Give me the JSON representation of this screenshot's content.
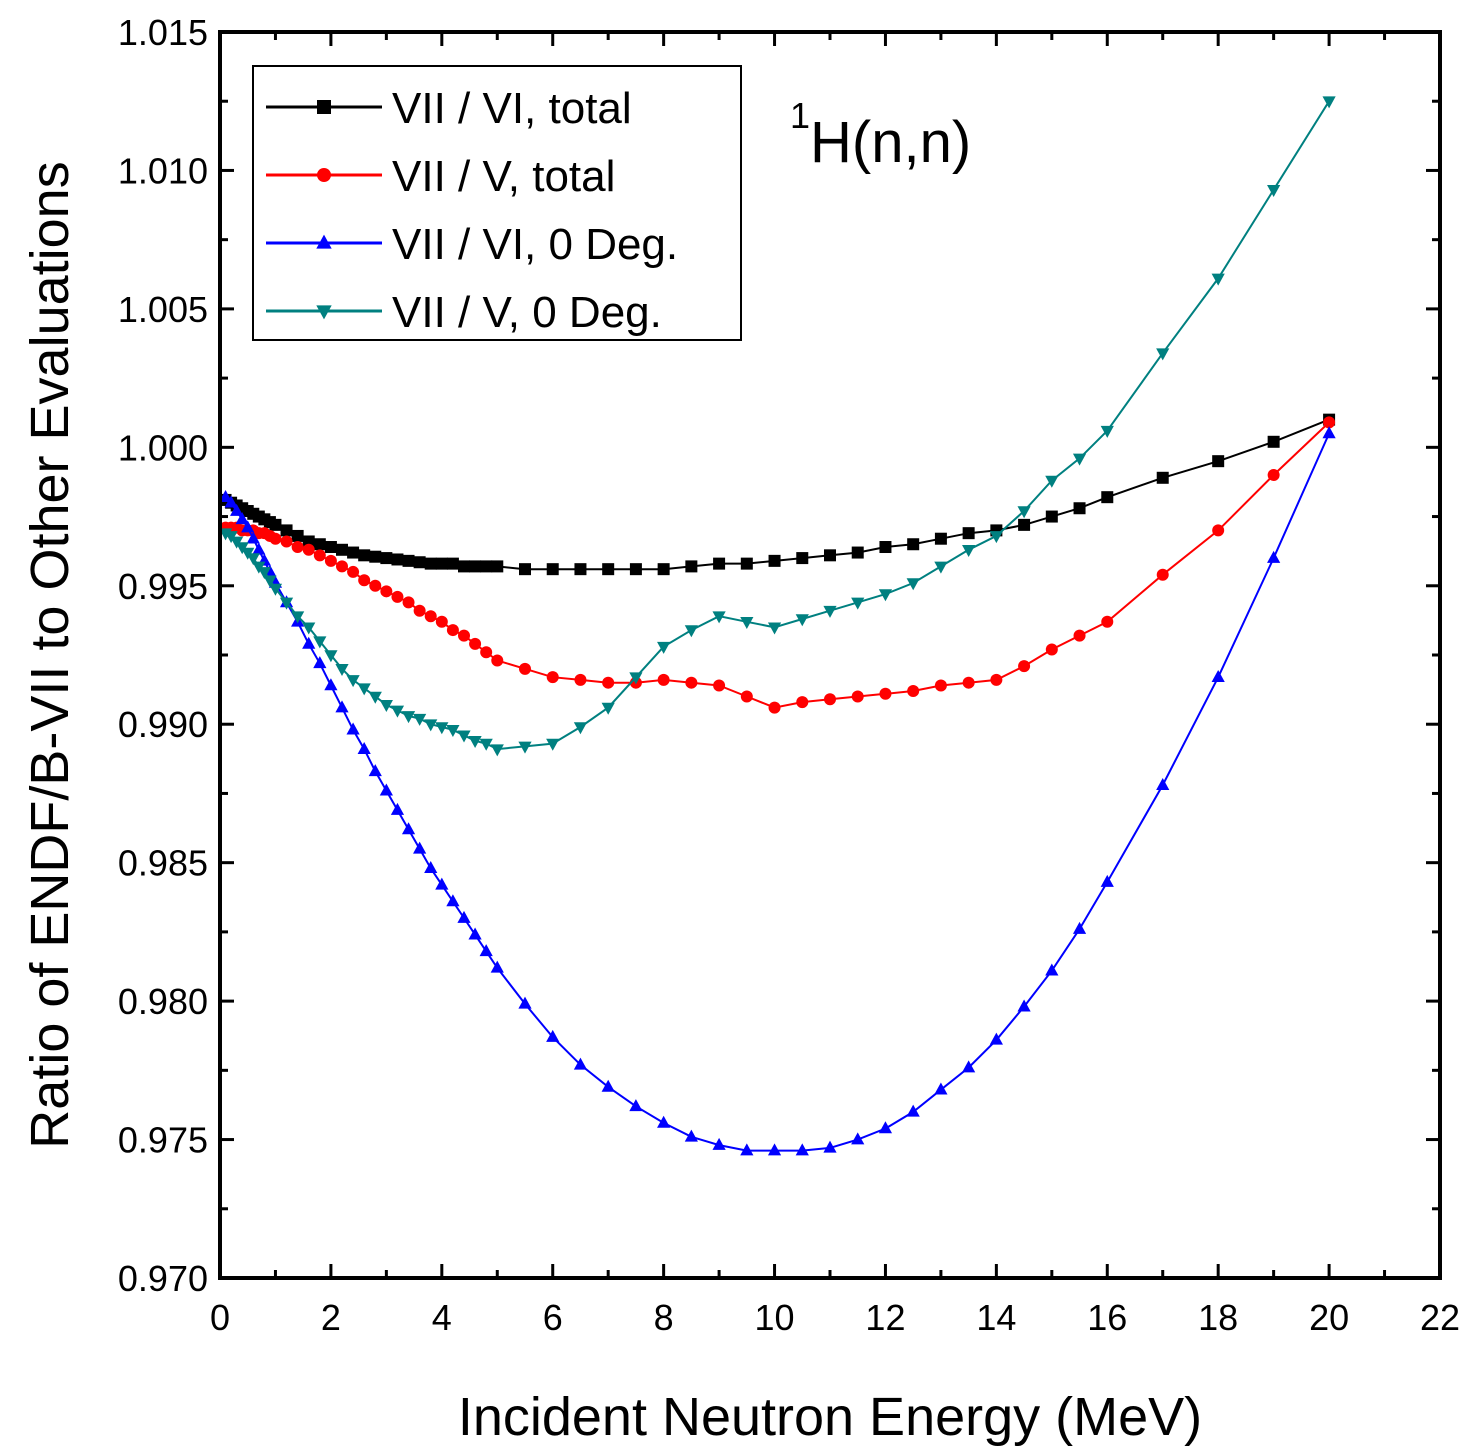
{
  "chart_data": {
    "type": "line",
    "title": "",
    "xlabel": "Incident Neutron Energy (MeV)",
    "ylabel": "Ratio of ENDF/B-VII to Other Evaluations",
    "xlim": [
      0,
      22
    ],
    "ylim": [
      0.97,
      1.015
    ],
    "x_ticks": [
      "0",
      "2",
      "4",
      "6",
      "8",
      "10",
      "12",
      "14",
      "16",
      "18",
      "20",
      "22"
    ],
    "y_ticks": [
      "0.970",
      "0.975",
      "0.980",
      "0.985",
      "0.990",
      "0.995",
      "1.000",
      "1.005",
      "1.010",
      "1.015"
    ],
    "grid": false,
    "legend_position": "top-left",
    "annotation": {
      "superscript": "1",
      "text": "H(n,n)"
    },
    "series": [
      {
        "name": "VII / VI, total",
        "color": "#000000",
        "marker": "square",
        "x": [
          0.1,
          0.2,
          0.3,
          0.4,
          0.5,
          0.6,
          0.7,
          0.8,
          0.9,
          1.0,
          1.2,
          1.4,
          1.6,
          1.8,
          2.0,
          2.2,
          2.4,
          2.6,
          2.8,
          3.0,
          3.2,
          3.4,
          3.6,
          3.8,
          4.0,
          4.2,
          4.4,
          4.6,
          4.8,
          5.0,
          5.5,
          6.0,
          6.5,
          7.0,
          7.5,
          8.0,
          8.5,
          9.0,
          9.5,
          10.0,
          10.5,
          11.0,
          11.5,
          12.0,
          12.5,
          13.0,
          13.5,
          14.0,
          14.5,
          15.0,
          15.5,
          16.0,
          17.0,
          18.0,
          19.0,
          20.0
        ],
        "y": [
          0.9981,
          0.998,
          0.9979,
          0.9978,
          0.9977,
          0.9976,
          0.9975,
          0.9974,
          0.9973,
          0.9972,
          0.997,
          0.9968,
          0.9966,
          0.9965,
          0.9964,
          0.9963,
          0.9962,
          0.9961,
          0.99605,
          0.996,
          0.99595,
          0.9959,
          0.99585,
          0.9958,
          0.9958,
          0.9958,
          0.9957,
          0.9957,
          0.9957,
          0.9957,
          0.9956,
          0.9956,
          0.9956,
          0.9956,
          0.9956,
          0.9956,
          0.9957,
          0.9958,
          0.9958,
          0.9959,
          0.996,
          0.9961,
          0.9962,
          0.9964,
          0.9965,
          0.9967,
          0.9969,
          0.997,
          0.9972,
          0.9975,
          0.9978,
          0.9982,
          0.9989,
          0.9995,
          1.0002,
          1.001
        ]
      },
      {
        "name": "VII / V, total",
        "color": "#ff0000",
        "marker": "circle",
        "x": [
          0.1,
          0.2,
          0.3,
          0.4,
          0.5,
          0.6,
          0.7,
          0.8,
          0.9,
          1.0,
          1.2,
          1.4,
          1.6,
          1.8,
          2.0,
          2.2,
          2.4,
          2.6,
          2.8,
          3.0,
          3.2,
          3.4,
          3.6,
          3.8,
          4.0,
          4.2,
          4.4,
          4.6,
          4.8,
          5.0,
          5.5,
          6.0,
          6.5,
          7.0,
          7.5,
          8.0,
          8.5,
          9.0,
          9.5,
          10.0,
          10.5,
          11.0,
          11.5,
          12.0,
          12.5,
          13.0,
          13.5,
          14.0,
          14.5,
          15.0,
          15.5,
          16.0,
          17.0,
          18.0,
          19.0,
          20.0
        ],
        "y": [
          0.9971,
          0.9971,
          0.9971,
          0.997,
          0.997,
          0.997,
          0.9969,
          0.9969,
          0.9968,
          0.9967,
          0.9966,
          0.9964,
          0.9963,
          0.9961,
          0.9959,
          0.9957,
          0.9955,
          0.9952,
          0.995,
          0.9948,
          0.9946,
          0.9944,
          0.9941,
          0.9939,
          0.9937,
          0.9934,
          0.9932,
          0.9929,
          0.9926,
          0.9923,
          0.992,
          0.9917,
          0.9916,
          0.9915,
          0.9915,
          0.9916,
          0.9915,
          0.9914,
          0.991,
          0.9906,
          0.9908,
          0.9909,
          0.991,
          0.9911,
          0.9912,
          0.9914,
          0.9915,
          0.9916,
          0.9921,
          0.9927,
          0.9932,
          0.9937,
          0.9954,
          0.997,
          0.999,
          1.0009
        ]
      },
      {
        "name": "VII / VI, 0 Deg.",
        "color": "#0000ff",
        "marker": "triangle-up",
        "x": [
          0.1,
          0.2,
          0.3,
          0.4,
          0.5,
          0.6,
          0.7,
          0.8,
          0.9,
          1.0,
          1.2,
          1.4,
          1.6,
          1.8,
          2.0,
          2.2,
          2.4,
          2.6,
          2.8,
          3.0,
          3.2,
          3.4,
          3.6,
          3.8,
          4.0,
          4.2,
          4.4,
          4.6,
          4.8,
          5.0,
          5.5,
          6.0,
          6.5,
          7.0,
          7.5,
          8.0,
          8.5,
          9.0,
          9.5,
          10.0,
          10.5,
          11.0,
          11.5,
          12.0,
          12.5,
          13.0,
          13.5,
          14.0,
          14.5,
          15.0,
          15.5,
          16.0,
          17.0,
          18.0,
          19.0,
          20.0
        ],
        "y": [
          0.9982,
          0.998,
          0.9977,
          0.9974,
          0.9971,
          0.9967,
          0.9963,
          0.9959,
          0.9955,
          0.9951,
          0.9944,
          0.9937,
          0.9929,
          0.9922,
          0.9914,
          0.9906,
          0.9898,
          0.9891,
          0.9883,
          0.9876,
          0.9869,
          0.9862,
          0.9855,
          0.9848,
          0.9842,
          0.9836,
          0.983,
          0.9824,
          0.9818,
          0.9812,
          0.9799,
          0.9787,
          0.9777,
          0.9769,
          0.9762,
          0.9756,
          0.9751,
          0.9748,
          0.9746,
          0.9746,
          0.9746,
          0.9747,
          0.975,
          0.9754,
          0.976,
          0.9768,
          0.9776,
          0.9786,
          0.9798,
          0.9811,
          0.9826,
          0.9843,
          0.9878,
          0.9917,
          0.996,
          1.0005
        ]
      },
      {
        "name": "VII / V, 0 Deg.",
        "color": "#008080",
        "marker": "triangle-down",
        "x": [
          0.1,
          0.2,
          0.3,
          0.4,
          0.5,
          0.6,
          0.7,
          0.8,
          0.9,
          1.0,
          1.2,
          1.4,
          1.6,
          1.8,
          2.0,
          2.2,
          2.4,
          2.6,
          2.8,
          3.0,
          3.2,
          3.4,
          3.6,
          3.8,
          4.0,
          4.2,
          4.4,
          4.6,
          4.8,
          5.0,
          5.5,
          6.0,
          6.5,
          7.0,
          7.5,
          8.0,
          8.5,
          9.0,
          9.5,
          10.0,
          10.5,
          11.0,
          11.5,
          12.0,
          12.5,
          13.0,
          13.5,
          14.0,
          14.5,
          15.0,
          15.5,
          16.0,
          17.0,
          18.0,
          19.0,
          20.0
        ],
        "y": [
          0.9969,
          0.9968,
          0.9966,
          0.9964,
          0.9962,
          0.996,
          0.9957,
          0.9955,
          0.9952,
          0.9949,
          0.9944,
          0.9939,
          0.9935,
          0.993,
          0.9925,
          0.992,
          0.9916,
          0.9913,
          0.991,
          0.9907,
          0.9905,
          0.9903,
          0.9902,
          0.99,
          0.9899,
          0.9898,
          0.9896,
          0.9894,
          0.9893,
          0.9891,
          0.9892,
          0.9893,
          0.9899,
          0.9906,
          0.9917,
          0.9928,
          0.9934,
          0.9939,
          0.9937,
          0.9935,
          0.9938,
          0.9941,
          0.9944,
          0.9947,
          0.9951,
          0.9957,
          0.9963,
          0.9968,
          0.9977,
          0.9988,
          0.9996,
          1.0006,
          1.0034,
          1.0061,
          1.0093,
          1.0125
        ]
      }
    ]
  }
}
